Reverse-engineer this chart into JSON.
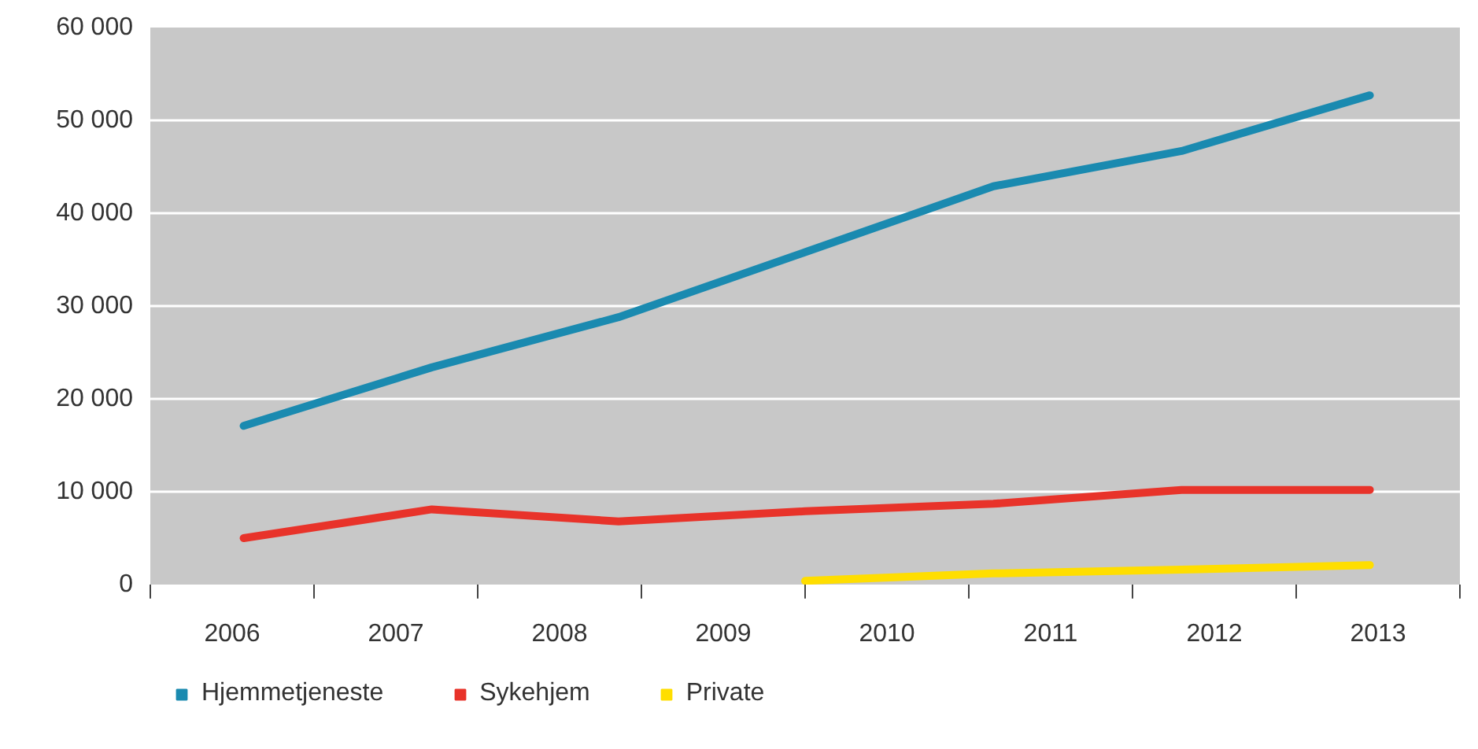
{
  "chart_data": {
    "type": "line",
    "xlim": [
      2005.5,
      2013.5
    ],
    "xticks": [
      {
        "value": 2005.5,
        "label": null
      },
      {
        "value": 2006,
        "label": "2006"
      },
      {
        "value": 2006.5,
        "label": null
      },
      {
        "value": 2007,
        "label": "2007"
      },
      {
        "value": 2007.5,
        "label": null
      },
      {
        "value": 2008,
        "label": "2008"
      },
      {
        "value": 2008.5,
        "label": null
      },
      {
        "value": 2009,
        "label": "2009"
      },
      {
        "value": 2009.5,
        "label": null
      },
      {
        "value": 2010,
        "label": "2010"
      },
      {
        "value": 2010.5,
        "label": null
      },
      {
        "value": 2011,
        "label": "2011"
      },
      {
        "value": 2011.5,
        "label": null
      },
      {
        "value": 2012,
        "label": "2012"
      },
      {
        "value": 2012.5,
        "label": null
      },
      {
        "value": 2013,
        "label": "2013"
      },
      {
        "value": 2013.5,
        "label": null
      }
    ],
    "ylim": [
      0,
      60000
    ],
    "yticks": [
      {
        "value": 0,
        "label": "0"
      },
      {
        "value": 10000,
        "label": "10 000"
      },
      {
        "value": 20000,
        "label": "20 000"
      },
      {
        "value": 30000,
        "label": "30 000"
      },
      {
        "value": 40000,
        "label": "40 000"
      },
      {
        "value": 50000,
        "label": "50 000"
      },
      {
        "value": 60000,
        "label": "60 000"
      }
    ],
    "grid": "y",
    "legend": "bottom",
    "marker": "none",
    "line_style": "solid",
    "series": [
      {
        "name": "Hjemmetjeneste",
        "color": "#1a8ab0",
        "x": [
          2006.07,
          2007.22,
          2008.36,
          2009.5,
          2010.65,
          2011.8,
          2012.95
        ],
        "values": [
          17100,
          23400,
          28800,
          35800,
          42900,
          46700,
          52700
        ]
      },
      {
        "name": "Sykehjem",
        "color": "#e8332a",
        "x": [
          2006.07,
          2007.22,
          2008.36,
          2009.5,
          2010.65,
          2011.8,
          2012.95
        ],
        "values": [
          5000,
          8100,
          6800,
          7900,
          8700,
          10200,
          10200
        ]
      },
      {
        "name": "Private",
        "color": "#ffde00",
        "x": [
          2009.5,
          2010.65,
          2011.8,
          2012.95
        ],
        "values": [
          400,
          1200,
          1600,
          2100
        ]
      }
    ]
  }
}
